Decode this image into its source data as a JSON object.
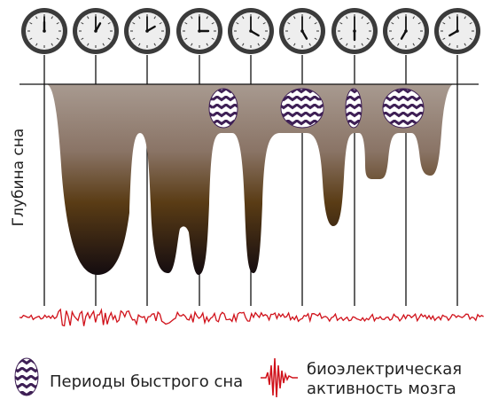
{
  "y_axis_label": "Глубина сна",
  "clock_times": [
    "12:00",
    "1:00",
    "2:00",
    "3:00",
    "4:00",
    "5:00",
    "6:00",
    "7:00",
    "8:00"
  ],
  "legend": {
    "rem_label": "Периоды быстрого сна",
    "eeg_label_line1": "биоэлектрическая",
    "eeg_label_line2": "активность мозга"
  },
  "colors": {
    "clock_rim": "#3b3b3b",
    "clock_face": "#eeeeee",
    "sleep_top": "#a89a90",
    "sleep_mid": "#5a3c15",
    "sleep_bottom": "#140c10",
    "rem_purple": "#3e1f55",
    "eeg_red": "#d0111a",
    "grid_line": "#111111"
  }
}
